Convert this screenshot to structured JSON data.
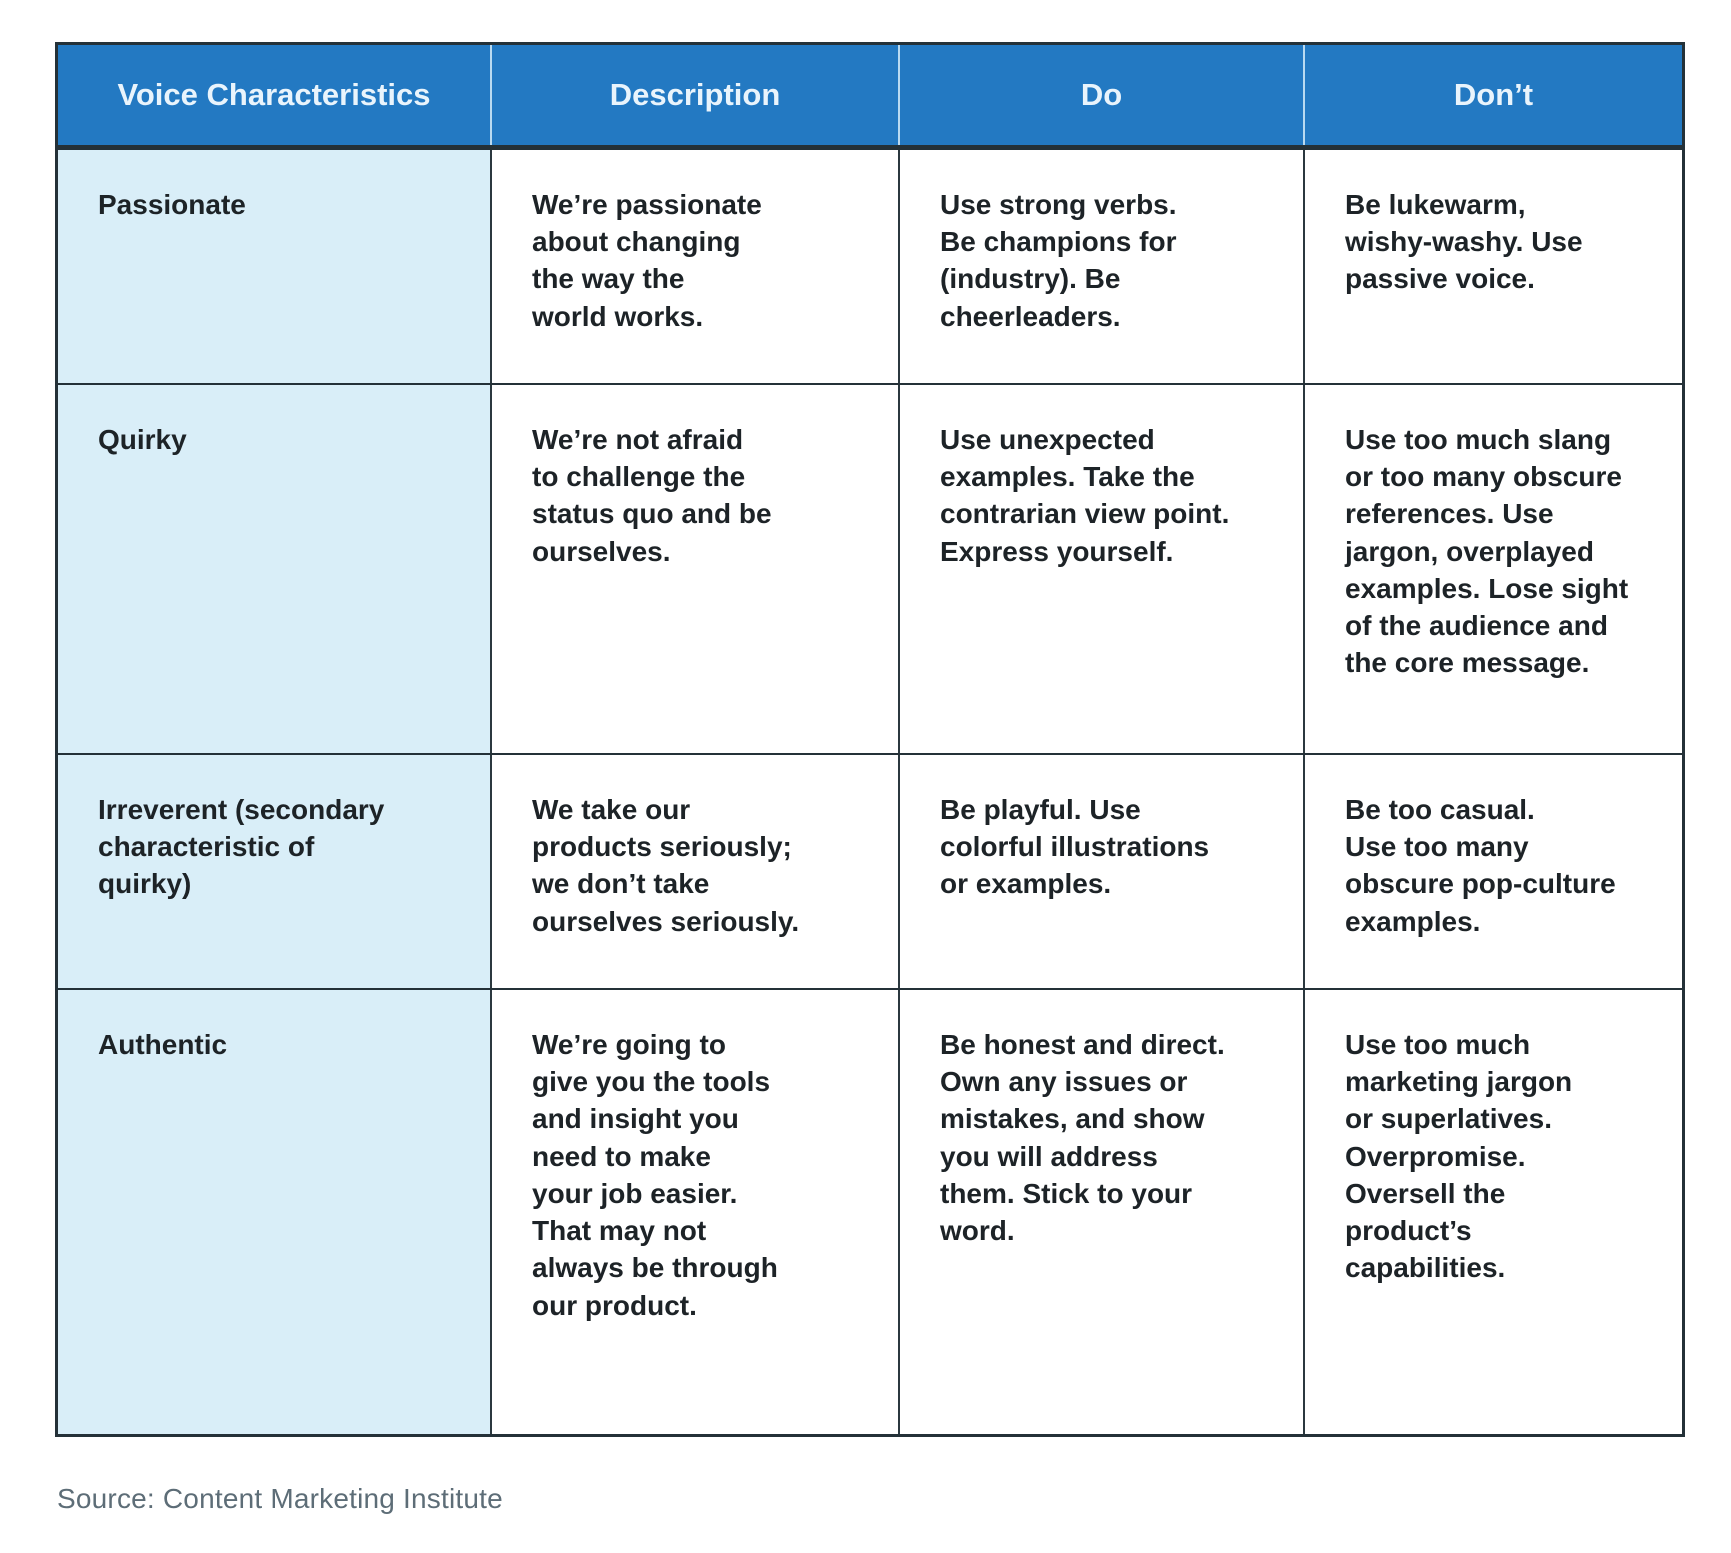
{
  "chart_data": {
    "type": "table",
    "columns": [
      "Voice Characteristics",
      "Description",
      "Do",
      "Don’t"
    ],
    "rows": [
      [
        "Passionate",
        "We’re passionate about changing the way the world works.",
        "Use strong verbs. Be champions for (industry). Be cheerleaders.",
        "Be lukewarm, wishy-washy. Use passive voice."
      ],
      [
        "Quirky",
        "We’re not afraid to challenge the status quo and be ourselves.",
        "Use unexpected examples. Take the contrarian view point. Express yourself.",
        "Use too much slang or too many obscure references. Use jargon, overplayed examples. Lose sight of the audience and the core message."
      ],
      [
        "Irreverent (secondary characteristic of quirky)",
        "We take our products seriously; we don’t take ourselves seriously.",
        "Be playful. Use colorful illustrations or examples.",
        "Be too casual. Use too many obscure pop-culture examples."
      ],
      [
        "Authentic",
        "We’re going to give you the tools and insight you need to make your job easier. That may not always be through our product.",
        "Be honest and direct. Own any issues or mistakes, and show you will address them. Stick to your word.",
        "Use too much marketing jargon or superlatives. Overpromise. Oversell the product’s capabilities."
      ]
    ],
    "source": "Source: Content Marketing Institute",
    "layout": "grid table, header row blue, first column light blue, cells top-left aligned"
  },
  "table": {
    "headers": [
      "Voice Characteristics",
      "Description",
      "Do",
      "Don’t"
    ],
    "rows": [
      {
        "characteristic": "Passionate",
        "description": "We’re passionate\nabout changing\nthe way the\nworld works.",
        "do": "Use strong verbs.\nBe champions for\n(industry). Be\ncheerleaders.",
        "dont": "Be lukewarm,\nwishy-washy. Use\npassive voice."
      },
      {
        "characteristic": "Quirky",
        "description": "We’re not afraid\nto challenge the\nstatus quo and be\nourselves.",
        "do": "Use unexpected\nexamples. Take the\ncontrarian view point.\nExpress yourself.",
        "dont": "Use too much slang\nor too many obscure\nreferences. Use\njargon, overplayed\nexamples. Lose sight\nof the audience and\nthe core message."
      },
      {
        "characteristic": "Irreverent (secondary\ncharacteristic of\nquirky)",
        "description": "We take our\nproducts seriously;\nwe don’t take\nourselves seriously.",
        "do": "Be playful. Use\ncolorful illustrations\nor examples.",
        "dont": "Be too casual.\nUse too many\nobscure pop-culture\nexamples."
      },
      {
        "characteristic": "Authentic",
        "description": "We’re going to\ngive you the tools\nand insight you\nneed to make\nyour job easier.\nThat may not\nalways be through\nour product.",
        "do": "Be honest and direct.\nOwn any issues or\nmistakes, and show\nyou will address\nthem. Stick to your\nword.",
        "dont": "Use too much\nmarketing jargon\nor superlatives.\nOverpromise.\nOversell the\nproduct’s\ncapabilities."
      }
    ],
    "source_label": "Source: Content Marketing Institute"
  },
  "colors": {
    "header_background": "#2379c2",
    "header_text": "#e9f4fc",
    "label_column_background": "#d9eef8",
    "body_text": "#1d2327",
    "border_dark": "#243138",
    "header_divider": "#b9daf1",
    "source_text": "#5d6d77"
  }
}
